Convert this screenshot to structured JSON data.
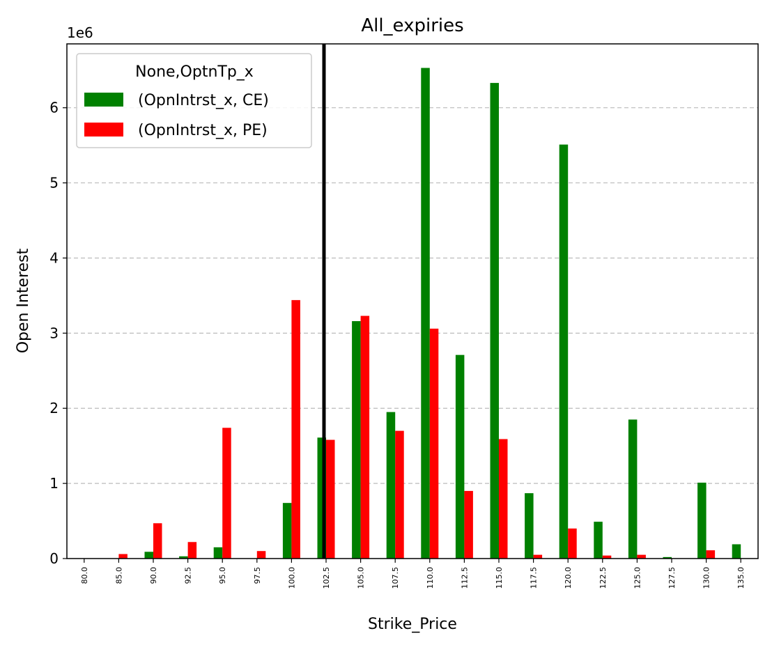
{
  "chart_data": {
    "type": "bar",
    "title": "All_expiries",
    "xlabel": "Strike_Price",
    "ylabel": "Open Interest",
    "y_offset_label": "1e6",
    "y_scale": 1000000,
    "ylim": [
      0,
      6.85
    ],
    "yticks": [
      "0",
      "1",
      "2",
      "3",
      "4",
      "5",
      "6"
    ],
    "grid": "y-dashed",
    "categories": [
      "80.0",
      "85.0",
      "90.0",
      "92.5",
      "95.0",
      "97.5",
      "100.0",
      "102.5",
      "105.0",
      "107.5",
      "110.0",
      "112.5",
      "115.0",
      "117.5",
      "120.0",
      "122.5",
      "125.0",
      "127.5",
      "130.0",
      "135.0"
    ],
    "reference_line": {
      "category": "102.5",
      "color": "#000000"
    },
    "legend": {
      "title": "None,OptnTp_x",
      "position": "upper left"
    },
    "series": [
      {
        "name": "(OpnIntrst_x, CE)",
        "color": "#008000",
        "values": [
          0,
          0,
          0.09,
          0.03,
          0.15,
          0,
          0.74,
          1.61,
          3.16,
          1.95,
          6.53,
          2.71,
          6.33,
          0.87,
          5.51,
          0.49,
          1.85,
          0.02,
          1.01,
          0.19
        ]
      },
      {
        "name": "(OpnIntrst_x, PE)",
        "color": "#ff0000",
        "values": [
          0,
          0.06,
          0.47,
          0.22,
          1.74,
          0.1,
          3.44,
          1.58,
          3.23,
          1.7,
          3.06,
          0.9,
          1.59,
          0.05,
          0.4,
          0.04,
          0.05,
          0,
          0.11,
          0
        ]
      }
    ]
  }
}
